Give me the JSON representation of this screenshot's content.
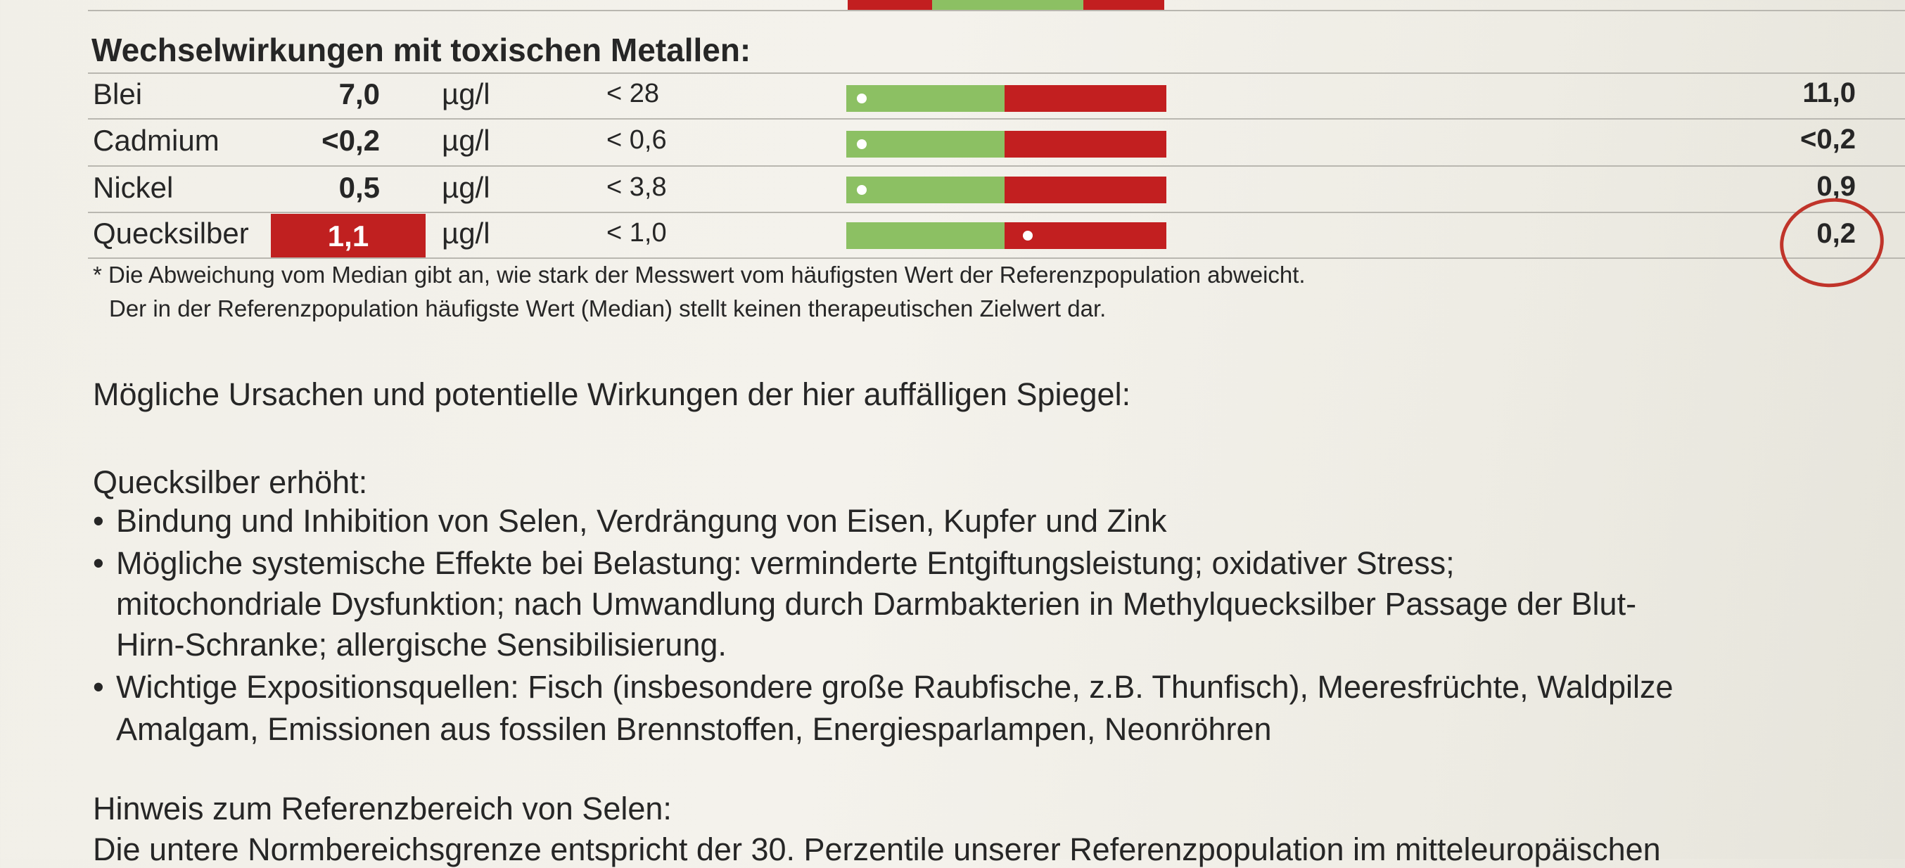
{
  "section_title": "Wechselwirkungen mit toxischen Metallen:",
  "rows": [
    {
      "name": "Blei",
      "value": "7,0",
      "unit": "µg/l",
      "ref": "< 28",
      "previous": "11,0",
      "highlight": false,
      "position": 0.02
    },
    {
      "name": "Cadmium",
      "value": "<0,2",
      "unit": "µg/l",
      "ref": "< 0,6",
      "previous": "<0,2",
      "highlight": false,
      "position": 0.02
    },
    {
      "name": "Nickel",
      "value": "0,5",
      "unit": "µg/l",
      "ref": "< 3,8",
      "previous": "0,9",
      "highlight": false,
      "position": 0.02
    },
    {
      "name": "Quecksilber",
      "value": "1,1",
      "unit": "µg/l",
      "ref": "< 1,0",
      "previous": "0,2",
      "highlight": true,
      "position": 0.57
    }
  ],
  "footnote": {
    "line1": "* Die Abweichung vom Median gibt an, wie stark der Messwert vom häufigsten Wert der Referenzpopulation abweicht.",
    "line2": "Der in der Referenzpopulation häufigste Wert (Median) stellt keinen therapeutischen Zielwert dar."
  },
  "causes_heading": "Mögliche Ursachen und potentielle Wirkungen der hier auffälligen Spiegel:",
  "mercury": {
    "heading": "Quecksilber erhöht:",
    "bullet1": "Bindung und Inhibition von Selen, Verdrängung von Eisen, Kupfer und Zink",
    "bullet2_line1": "Mögliche systemische Effekte bei Belastung: verminderte Entgiftungsleistung; oxidativer Stress;",
    "bullet2_line2": "mitochondriale Dysfunktion; nach Umwandlung durch Darmbakterien in Methylquecksilber Passage der Blut-",
    "bullet2_line3": "Hirn-Schranke; allergische Sensibilisierung.",
    "bullet3_line1": "Wichtige Expositionsquellen: Fisch (insbesondere große Raubfische, z.B. Thunfisch), Meeresfrüchte, Waldpilze",
    "bullet3_line2": "Amalgam, Emissionen aus fossilen Brennstoffen, Energiesparlampen, Neonröhren",
    "bullet_symbol": "•"
  },
  "selen_note": {
    "heading": "Hinweis zum Referenzbereich von Selen:",
    "line1": "Die untere Normbereichsgrenze entspricht der 30. Perzentile unserer Referenzpopulation im mitteleuropäischen"
  },
  "colors": {
    "normal": "#8cc063",
    "abnormal": "#c21f20",
    "annotation": "#c0342a"
  }
}
